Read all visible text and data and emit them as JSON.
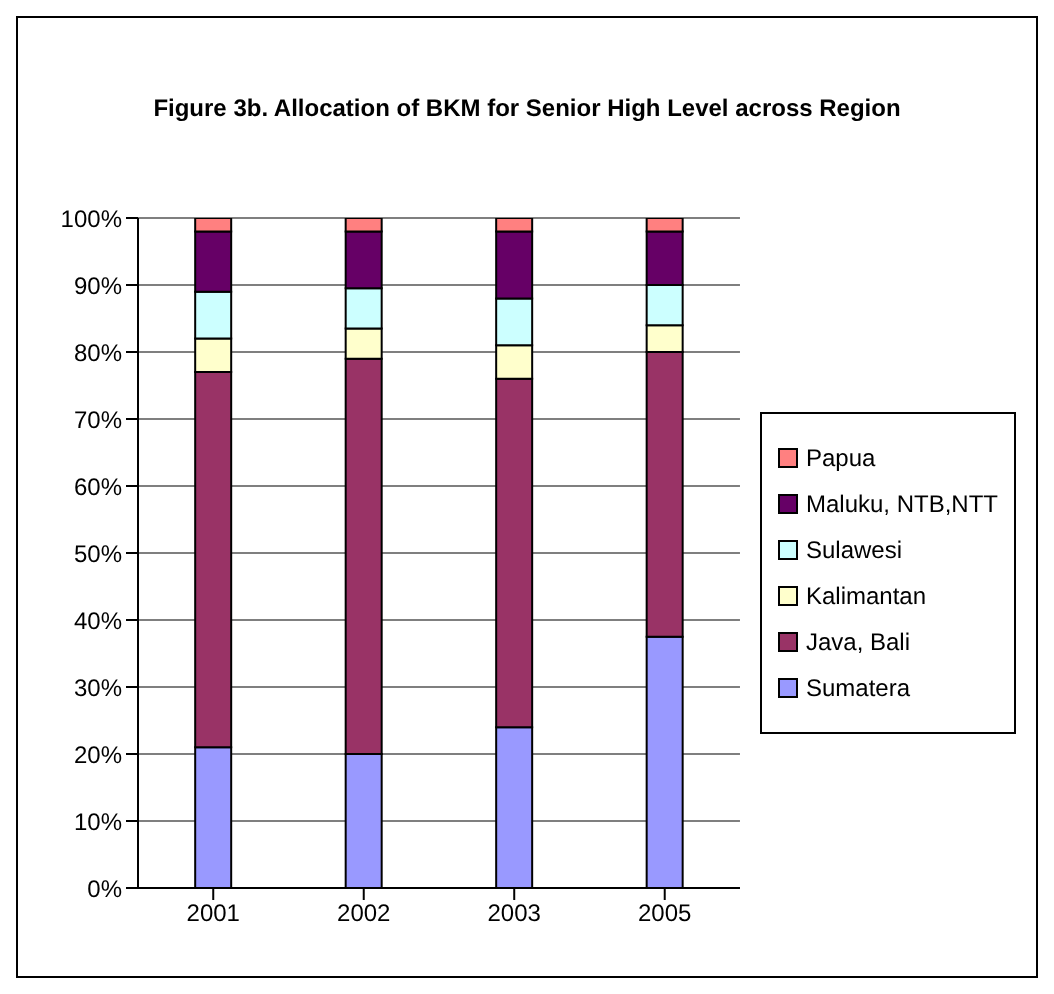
{
  "chart_data": {
    "type": "bar",
    "title": "Figure 3b.  Allocation of BKM for Senior High Level across Region",
    "categories": [
      "2001",
      "2002",
      "2003",
      "2005"
    ],
    "stacked": true,
    "ylim": [
      0,
      100
    ],
    "yticks": [
      {
        "value": 0,
        "label": "0%"
      },
      {
        "value": 10,
        "label": "10%"
      },
      {
        "value": 20,
        "label": "20%"
      },
      {
        "value": 30,
        "label": "30%"
      },
      {
        "value": 40,
        "label": "40%"
      },
      {
        "value": 50,
        "label": "50%"
      },
      {
        "value": 60,
        "label": "60%"
      },
      {
        "value": 70,
        "label": "70%"
      },
      {
        "value": 80,
        "label": "80%"
      },
      {
        "value": 90,
        "label": "90%"
      },
      {
        "value": 100,
        "label": "100%"
      }
    ],
    "grid": "y",
    "legend": "right",
    "series": [
      {
        "name": "Sumatera",
        "color": "#9999ff",
        "values": [
          21,
          20,
          24,
          37.5
        ]
      },
      {
        "name": "Java, Bali",
        "color": "#993366",
        "values": [
          56,
          59,
          52,
          42.5
        ]
      },
      {
        "name": "Kalimantan",
        "color": "#ffffcc",
        "values": [
          5,
          4.5,
          5,
          4
        ]
      },
      {
        "name": "Sulawesi",
        "color": "#ccffff",
        "values": [
          7,
          6,
          7,
          6
        ]
      },
      {
        "name": "Maluku, NTB,NTT",
        "color": "#660066",
        "values": [
          9,
          8.5,
          10,
          8
        ]
      },
      {
        "name": "Papua",
        "color": "#ff8080",
        "values": [
          2,
          2,
          2,
          2
        ]
      }
    ]
  }
}
